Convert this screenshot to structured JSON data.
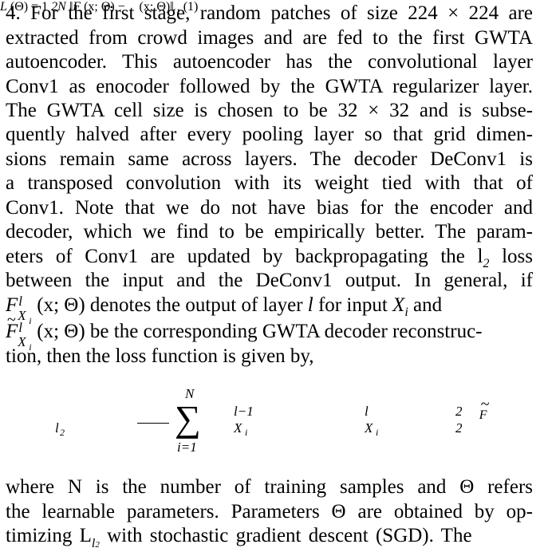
{
  "paragraph1": [
    {
      "parts": [
        "4. For the first stage, random patches of size 224 × 224 are"
      ]
    },
    {
      "parts": [
        "extracted from crowd images and are fed to the first GWTA"
      ]
    },
    {
      "parts": [
        "autoencoder. This autoencoder has the convolutional layer"
      ]
    },
    {
      "parts": [
        "Conv1 as enocoder followed by the GWTA regularizer layer."
      ]
    },
    {
      "parts": [
        "The GWTA cell size is chosen to be 32 × 32 and is subse-"
      ]
    },
    {
      "parts": [
        "quently halved after every pooling layer so that grid dimen-"
      ]
    },
    {
      "parts": [
        "sions remain same across layers. The decoder DeConv1 is"
      ]
    },
    {
      "parts": [
        "a transposed convolution with its weight tied with that of"
      ]
    },
    {
      "parts": [
        "Conv1. Note that we do not have bias for the encoder and"
      ]
    },
    {
      "parts": [
        "decoder, which we find to be empirically better. The param-"
      ]
    },
    {
      "parts": [
        "eters of Conv1 are updated by backpropagating the l",
        "2",
        " loss"
      ]
    },
    {
      "parts": [
        "between the input and the DeConv1 output. In general, if"
      ]
    },
    {
      "parts": [
        "F",
        "l",
        "X",
        "i",
        "(x; Θ) denotes the output of layer ",
        "l",
        " for input ",
        "X",
        "i",
        " and"
      ]
    },
    {
      "parts": [
        "F",
        "l",
        "X",
        "i",
        "(x; Θ) be the corresponding GWTA decoder reconstruc-"
      ]
    },
    {
      "parts": [
        "tion, then the loss function is given by,"
      ]
    }
  ],
  "equation": {
    "lhs": "L",
    "lhs_sub": "l",
    "lhs_subsub": "2",
    "lhs_arg": "(Θ) =",
    "frac_num": "1",
    "frac_den": "2N",
    "sum_top": "N",
    "sum_bottom": "i=1",
    "term1_open": "‖F",
    "term1_sup": "l−1",
    "term1_sub": "X",
    "term1_subsub": "i",
    "term1_arg": "(x; Θ) −",
    "term2_F": "F",
    "term2_sup": "l",
    "term2_sub": "X",
    "term2_subsub": "i",
    "term2_arg": "(x; Θ)‖",
    "norm_sup": "2",
    "norm_sub": "2",
    "trail": ",",
    "number": "(1)"
  },
  "paragraph2": [
    "where N is the number of training samples and Θ refers",
    "the learnable parameters. Parameters Θ are obtained by op-",
    "timizing L",
    "with stochastic gradient descent (SGD). The"
  ]
}
